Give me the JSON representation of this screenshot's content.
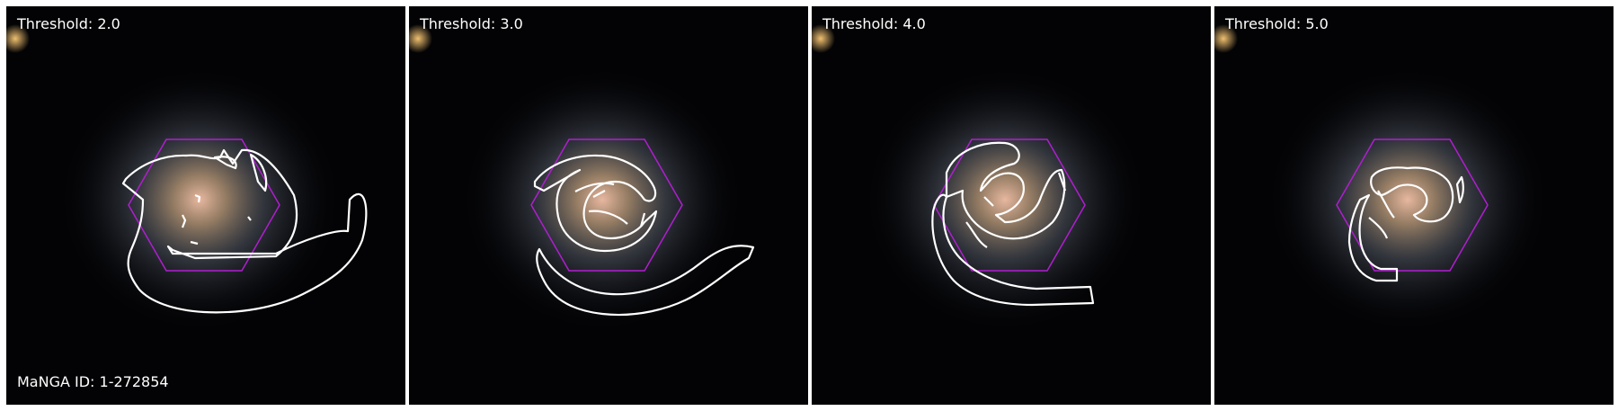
{
  "panels": [
    {
      "threshold_label": "Threshold: 2.0"
    },
    {
      "threshold_label": "Threshold: 3.0"
    },
    {
      "threshold_label": "Threshold: 4.0"
    },
    {
      "threshold_label": "Threshold: 5.0"
    }
  ],
  "manga_label": "MaNGA ID: 1-272854",
  "colors": {
    "contour": "#ffffff",
    "hexagon": "#b01ed0",
    "background": "#000000"
  }
}
